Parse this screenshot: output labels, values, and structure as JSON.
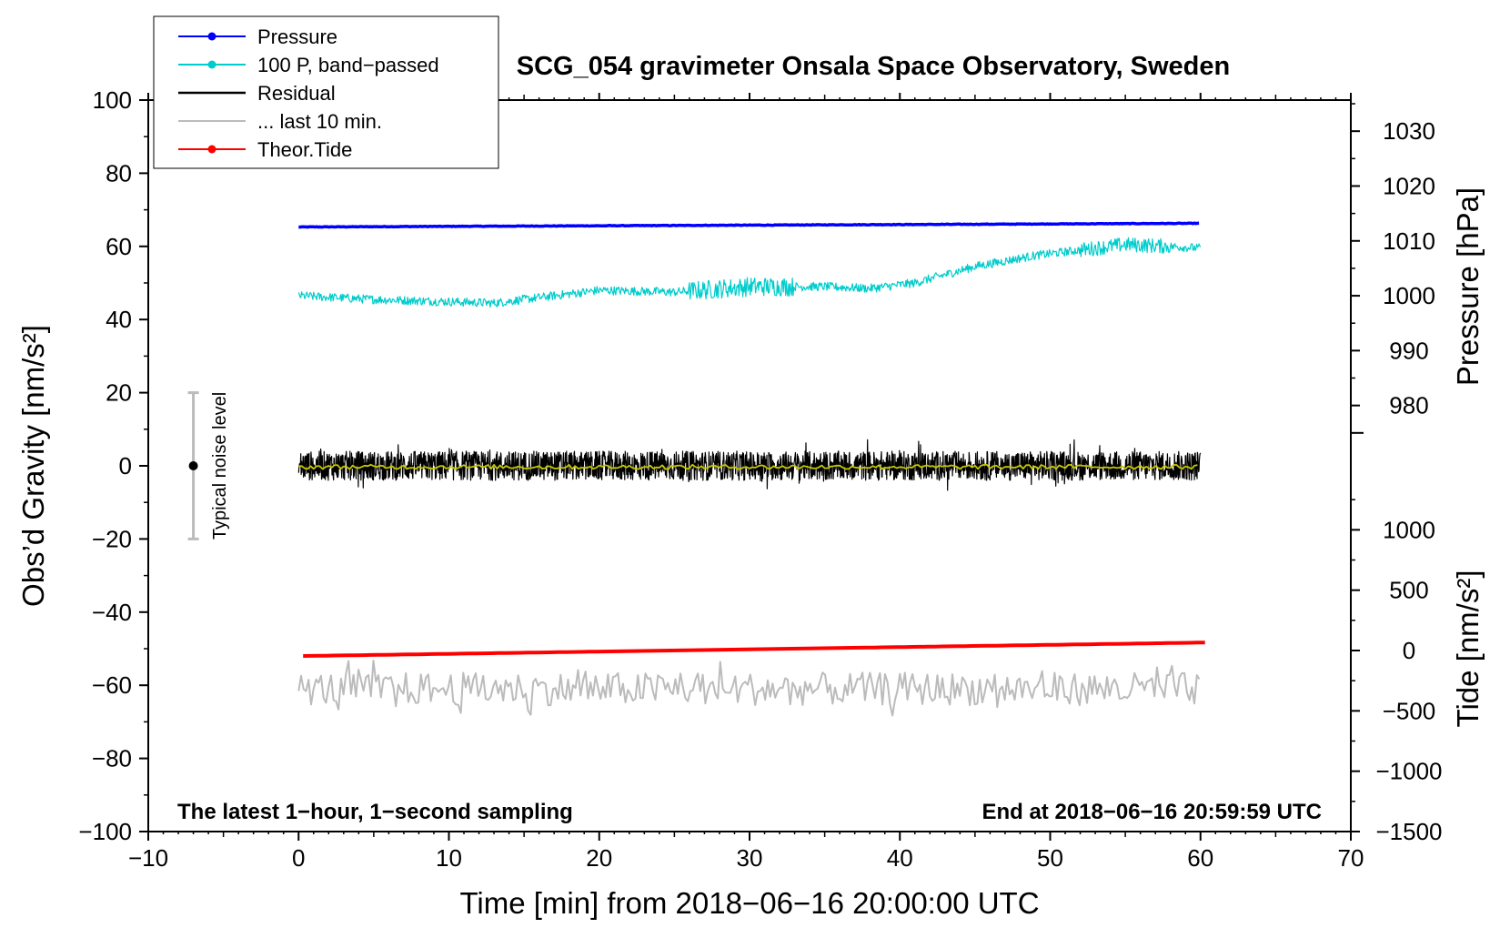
{
  "chart_data": {
    "type": "line",
    "title": "SCG_054 gravimeter Onsala Space Observatory, Sweden",
    "xlabel": "Time [min] from 2018−06−16 20:00:00 UTC",
    "ylabel_left": "Obs’d Gravity [nm/s²]",
    "ylabel_right_pressure": "Pressure [hPa]",
    "ylabel_right_tide": "Tide [nm/s²]",
    "xlim": [
      -10,
      70
    ],
    "ylim": [
      -100,
      100
    ],
    "x_ticks": [
      -10,
      0,
      10,
      20,
      30,
      40,
      50,
      60,
      70
    ],
    "x_tick_labels": [
      "−10",
      "0",
      "10",
      "20",
      "30",
      "40",
      "50",
      "60",
      "70"
    ],
    "y_ticks": [
      -100,
      -80,
      -60,
      -40,
      -20,
      0,
      20,
      40,
      60,
      80,
      100
    ],
    "y_tick_labels": [
      "−100",
      "−80",
      "−60",
      "−40",
      "−20",
      "0",
      "20",
      "40",
      "60",
      "80",
      "100"
    ],
    "pressure_axis": {
      "ticks": [
        980,
        990,
        1000,
        1010,
        1020,
        1030
      ],
      "tick_labels": [
        "980",
        "990",
        "1000",
        "1010",
        "1020",
        "1030"
      ],
      "gravity_at_1000": 46.5,
      "gravity_per_hpa": 1.5
    },
    "tide_axis": {
      "ticks": [
        -1500,
        -1000,
        -500,
        0,
        500,
        1000
      ],
      "tick_labels": [
        "−1500",
        "−1000",
        "−500",
        "0",
        "500",
        "1000"
      ],
      "gravity_at_0": -50.5,
      "gravity_per_unit": 0.033
    },
    "legend": {
      "position": "top-left",
      "entries": [
        {
          "label": "Pressure",
          "color": "#0000ff",
          "marker": true
        },
        {
          "label": "100 P, band−passed",
          "color": "#00cccc",
          "marker": true
        },
        {
          "label": "Residual",
          "color": "#000000",
          "marker": false
        },
        {
          "label": "... last 10 min.",
          "color": "#bbbbbb",
          "marker": false
        },
        {
          "label": "Theor.Tide",
          "color": "#ff0000",
          "marker": true
        }
      ]
    },
    "annotations": {
      "left": "The latest 1−hour, 1−second sampling",
      "right": "End at 2018−06−16 20:59:59 UTC",
      "noise_label": "Typical noise level"
    },
    "noise_bar": {
      "x": -7,
      "center": 0,
      "low": -20,
      "high": 20
    },
    "series": [
      {
        "name": "Pressure",
        "color": "#0000ff",
        "x_range": [
          0,
          60
        ],
        "start": 65.3,
        "end": 66.3,
        "noise": 0.15
      },
      {
        "name": "100 P, band−passed",
        "color": "#00cccc",
        "x": [
          0,
          5,
          9,
          13,
          17,
          20,
          25,
          30,
          35,
          38,
          41,
          45,
          49,
          52,
          55,
          58,
          60
        ],
        "y": [
          46.5,
          45.5,
          45,
          44.5,
          46.5,
          48,
          47.5,
          49,
          49,
          48.5,
          50,
          54.5,
          57.5,
          59,
          60.5,
          60,
          59.5
        ],
        "noise": 1.2
      },
      {
        "name": "Residual",
        "color": "#000000",
        "x_range": [
          0,
          60
        ],
        "mean": 0,
        "amplitude": 4
      },
      {
        "name": "Residual smoothed",
        "color": "#c8c800",
        "x_range": [
          0,
          60
        ],
        "mean": -0.3,
        "amplitude": 0.6
      },
      {
        "name": "Theor.Tide",
        "color": "#ff0000",
        "x_range": [
          0.3,
          60.5
        ],
        "start": -52,
        "end": -48.3
      },
      {
        "name": "... last 10 min.",
        "color": "#bbbbbb",
        "x_range": [
          0,
          60
        ],
        "mean": -61,
        "amplitude": 4.5
      }
    ]
  }
}
